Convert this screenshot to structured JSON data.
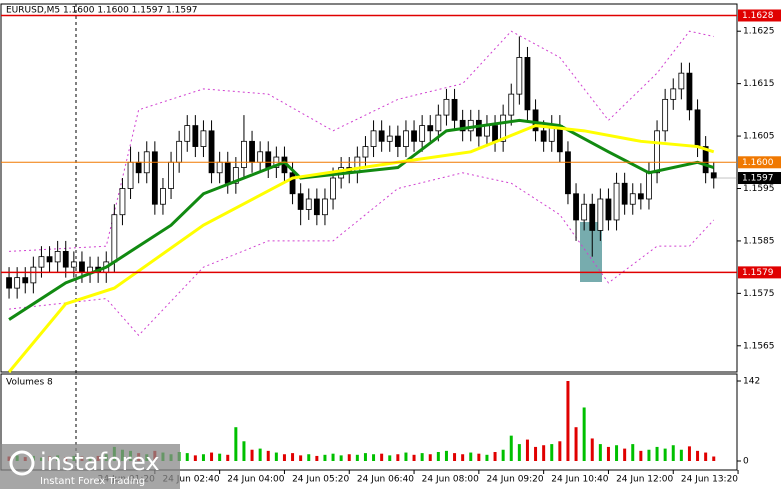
{
  "header": "EURUSD,M5  1.1600 1.1600 1.1597 1.1597",
  "watermark": {
    "brand": "instaforex",
    "tagline": "Instant Forex Trading"
  },
  "chart_data": {
    "type": "candlestick",
    "up_color": "#ffffff",
    "down_color": "#000000",
    "ylim": [
      1.156,
      1.163
    ],
    "yticks": [
      1.1625,
      1.1615,
      1.1605,
      1.1595,
      1.1585,
      1.1575,
      1.1565
    ],
    "levels": [
      {
        "value": 1.1628,
        "color": "#e00000"
      },
      {
        "value": 1.16,
        "label": "1.1600",
        "color": "#f07800"
      },
      {
        "value": 1.1579,
        "color": "#e00000"
      }
    ],
    "last": {
      "value": 1.1597,
      "color": "#000000"
    },
    "xticks": [
      {
        "value": 18,
        "label": "24 Jun 01:20"
      },
      {
        "value": 26,
        "label": "24 Jun 02:40"
      },
      {
        "value": 34,
        "label": "24 Jun 04:00"
      },
      {
        "value": 42,
        "label": "24 Jun 05:20"
      },
      {
        "value": 50,
        "label": "24 Jun 06:40"
      },
      {
        "value": 58,
        "label": "24 Jun 08:00"
      },
      {
        "value": 66,
        "label": "24 Jun 09:20"
      },
      {
        "value": 74,
        "label": "24 Jun 10:40"
      },
      {
        "value": 82,
        "label": "24 Jun 12:00"
      },
      {
        "value": 90,
        "label": "24 Jun 13:20"
      }
    ],
    "candles": [
      [
        1.1578,
        1.158,
        1.1574,
        1.1576
      ],
      [
        1.1576,
        1.158,
        1.1574,
        1.1578
      ],
      [
        1.1578,
        1.158,
        1.1575,
        1.1577
      ],
      [
        1.1577,
        1.1582,
        1.1575,
        1.158
      ],
      [
        1.158,
        1.1584,
        1.1578,
        1.1582
      ],
      [
        1.1582,
        1.1584,
        1.1579,
        1.1581
      ],
      [
        1.1581,
        1.1585,
        1.1579,
        1.1583
      ],
      [
        1.1583,
        1.1585,
        1.1578,
        1.158
      ],
      [
        1.158,
        1.1583,
        1.1578,
        1.1581
      ],
      [
        1.1581,
        1.1583,
        1.1577,
        1.1579
      ],
      [
        1.1579,
        1.1582,
        1.1577,
        1.158
      ],
      [
        1.158,
        1.1582,
        1.1577,
        1.1579
      ],
      [
        1.1579,
        1.1583,
        1.1577,
        1.1581
      ],
      [
        1.1581,
        1.1592,
        1.1579,
        1.159
      ],
      [
        1.159,
        1.1597,
        1.1588,
        1.1595
      ],
      [
        1.1595,
        1.1603,
        1.1593,
        1.16
      ],
      [
        1.16,
        1.1602,
        1.1596,
        1.1598
      ],
      [
        1.1598,
        1.1604,
        1.1596,
        1.1602
      ],
      [
        1.1602,
        1.1604,
        1.159,
        1.1592
      ],
      [
        1.1592,
        1.1597,
        1.159,
        1.1595
      ],
      [
        1.1595,
        1.1602,
        1.1593,
        1.16
      ],
      [
        1.16,
        1.1606,
        1.1598,
        1.1604
      ],
      [
        1.1604,
        1.1609,
        1.1602,
        1.1607
      ],
      [
        1.1607,
        1.1609,
        1.1601,
        1.1603
      ],
      [
        1.1603,
        1.1608,
        1.1601,
        1.1606
      ],
      [
        1.1606,
        1.1608,
        1.1596,
        1.1598
      ],
      [
        1.1598,
        1.1602,
        1.1596,
        1.16
      ],
      [
        1.16,
        1.1602,
        1.1594,
        1.1596
      ],
      [
        1.1596,
        1.1601,
        1.1594,
        1.1599
      ],
      [
        1.1599,
        1.1609,
        1.1597,
        1.1604
      ],
      [
        1.1604,
        1.1606,
        1.1598,
        1.16
      ],
      [
        1.16,
        1.1604,
        1.1598,
        1.1602
      ],
      [
        1.1602,
        1.1604,
        1.1597,
        1.1599
      ],
      [
        1.1599,
        1.1603,
        1.1597,
        1.1601
      ],
      [
        1.1601,
        1.1603,
        1.1596,
        1.1598
      ],
      [
        1.1598,
        1.16,
        1.1592,
        1.1594
      ],
      [
        1.1594,
        1.1596,
        1.1588,
        1.1591
      ],
      [
        1.1591,
        1.1595,
        1.1589,
        1.1593
      ],
      [
        1.1593,
        1.1595,
        1.1588,
        1.159
      ],
      [
        1.159,
        1.1595,
        1.1588,
        1.1593
      ],
      [
        1.1593,
        1.1599,
        1.1591,
        1.1597
      ],
      [
        1.1597,
        1.1601,
        1.1595,
        1.1599
      ],
      [
        1.1599,
        1.1601,
        1.1596,
        1.1598
      ],
      [
        1.1598,
        1.1603,
        1.1596,
        1.1601
      ],
      [
        1.1601,
        1.1605,
        1.1599,
        1.1603
      ],
      [
        1.1603,
        1.1608,
        1.1601,
        1.1606
      ],
      [
        1.1606,
        1.1608,
        1.1602,
        1.1604
      ],
      [
        1.1604,
        1.1607,
        1.1602,
        1.1605
      ],
      [
        1.1605,
        1.1607,
        1.1601,
        1.1603
      ],
      [
        1.1603,
        1.1608,
        1.1601,
        1.1606
      ],
      [
        1.1606,
        1.1608,
        1.1602,
        1.1604
      ],
      [
        1.1604,
        1.1609,
        1.1602,
        1.1607
      ],
      [
        1.1607,
        1.1609,
        1.1604,
        1.1606
      ],
      [
        1.1606,
        1.1611,
        1.1604,
        1.1609
      ],
      [
        1.1609,
        1.1614,
        1.1607,
        1.1612
      ],
      [
        1.1612,
        1.1614,
        1.1606,
        1.1608
      ],
      [
        1.1608,
        1.161,
        1.1604,
        1.1606
      ],
      [
        1.1606,
        1.161,
        1.1604,
        1.1608
      ],
      [
        1.1608,
        1.161,
        1.1603,
        1.1605
      ],
      [
        1.1605,
        1.1609,
        1.1603,
        1.1607
      ],
      [
        1.1607,
        1.1609,
        1.1602,
        1.1604
      ],
      [
        1.1604,
        1.1611,
        1.1602,
        1.1609
      ],
      [
        1.1609,
        1.1615,
        1.1607,
        1.1613
      ],
      [
        1.1613,
        1.1624,
        1.1611,
        1.162
      ],
      [
        1.162,
        1.1622,
        1.1608,
        1.161
      ],
      [
        1.161,
        1.1612,
        1.1604,
        1.1606
      ],
      [
        1.1606,
        1.1608,
        1.1602,
        1.1604
      ],
      [
        1.1604,
        1.1609,
        1.1602,
        1.1607
      ],
      [
        1.1607,
        1.1609,
        1.16,
        1.1602
      ],
      [
        1.1602,
        1.1604,
        1.1592,
        1.1594
      ],
      [
        1.1594,
        1.1596,
        1.1585,
        1.1589
      ],
      [
        1.1589,
        1.1594,
        1.1587,
        1.1592
      ],
      [
        1.1592,
        1.1594,
        1.1582,
        1.1587
      ],
      [
        1.1587,
        1.1595,
        1.1585,
        1.1593
      ],
      [
        1.1593,
        1.1595,
        1.1587,
        1.1589
      ],
      [
        1.1589,
        1.1598,
        1.1587,
        1.1596
      ],
      [
        1.1596,
        1.1598,
        1.159,
        1.1592
      ],
      [
        1.1592,
        1.1596,
        1.159,
        1.1594
      ],
      [
        1.1594,
        1.1596,
        1.1591,
        1.1593
      ],
      [
        1.1593,
        1.16,
        1.1591,
        1.1598
      ],
      [
        1.1598,
        1.1608,
        1.1596,
        1.1606
      ],
      [
        1.1606,
        1.1614,
        1.1604,
        1.1612
      ],
      [
        1.1612,
        1.1616,
        1.161,
        1.1614
      ],
      [
        1.1614,
        1.1619,
        1.1612,
        1.1617
      ],
      [
        1.1617,
        1.1619,
        1.1608,
        1.161
      ],
      [
        1.161,
        1.1612,
        1.1601,
        1.1603
      ],
      [
        1.1603,
        1.1605,
        1.1596,
        1.1598
      ],
      [
        1.1598,
        1.16,
        1.1595,
        1.1597
      ]
    ],
    "lines": [
      {
        "color": "#118a11",
        "width": 3,
        "x": [
          0,
          7,
          12,
          20,
          24,
          34,
          36,
          48,
          54,
          63,
          68,
          74,
          79,
          85,
          87
        ],
        "values": [
          1.157,
          1.1577,
          1.158,
          1.1588,
          1.1594,
          1.16,
          1.1597,
          1.1599,
          1.1606,
          1.1608,
          1.1607,
          1.1602,
          1.1598,
          1.16,
          1.1599
        ]
      },
      {
        "color": "#ffff00",
        "width": 3,
        "x": [
          0,
          7,
          13,
          24,
          35,
          48,
          57,
          65,
          71,
          78,
          85,
          87
        ],
        "values": [
          1.156,
          1.1573,
          1.1576,
          1.1588,
          1.1597,
          1.16,
          1.1602,
          1.1607,
          1.1606,
          1.1604,
          1.1603,
          1.1602
        ]
      }
    ],
    "bands": [
      {
        "color": "#d040d0",
        "x": [
          0,
          12,
          16,
          24,
          32,
          40,
          48,
          56,
          62,
          68,
          74,
          80,
          84,
          87
        ],
        "values": [
          1.1583,
          1.1584,
          1.161,
          1.1614,
          1.1613,
          1.1606,
          1.1612,
          1.1615,
          1.1625,
          1.162,
          1.1608,
          1.1617,
          1.1625,
          1.1624
        ]
      },
      {
        "color": "#d040d0",
        "x": [
          0,
          12,
          16,
          24,
          32,
          40,
          48,
          56,
          62,
          68,
          74,
          80,
          84,
          87
        ],
        "values": [
          1.1572,
          1.1574,
          1.1567,
          1.158,
          1.1585,
          1.1585,
          1.1595,
          1.1598,
          1.1596,
          1.159,
          1.1577,
          1.1584,
          1.1584,
          1.1589
        ]
      }
    ],
    "volume": {
      "title": "Volumes 8",
      "up_color": "#00c000",
      "down_color": "#e00000",
      "ylim": [
        0,
        142
      ],
      "yticks": [
        142,
        0
      ],
      "values": [
        8,
        10,
        7,
        9,
        6,
        8,
        10,
        7,
        9,
        8,
        6,
        9,
        12,
        25,
        20,
        18,
        14,
        12,
        18,
        15,
        12,
        16,
        14,
        10,
        12,
        15,
        13,
        11,
        60,
        35,
        20,
        22,
        18,
        15,
        12,
        14,
        10,
        12,
        9,
        11,
        13,
        10,
        12,
        11,
        14,
        12,
        13,
        10,
        12,
        15,
        11,
        14,
        12,
        16,
        18,
        14,
        12,
        15,
        13,
        11,
        16,
        20,
        45,
        30,
        38,
        25,
        28,
        30,
        35,
        142,
        60,
        95,
        40,
        30,
        25,
        28,
        22,
        30,
        18,
        20,
        25,
        22,
        28,
        20,
        26,
        18,
        15,
        8
      ]
    }
  }
}
